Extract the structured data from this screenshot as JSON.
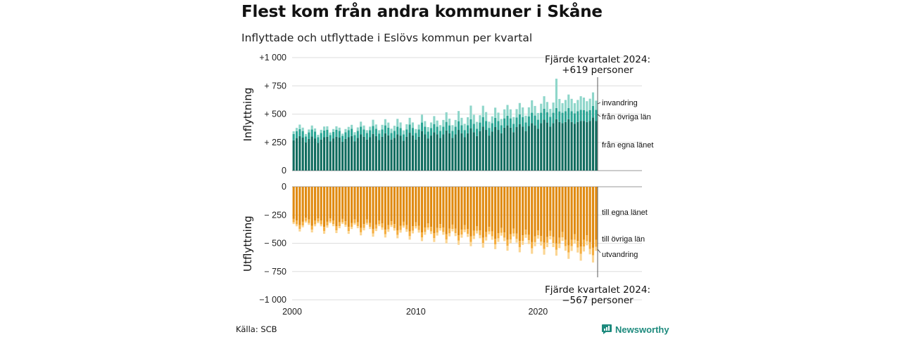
{
  "header": {
    "title": "Flest kom från andra kommuner i Skåne",
    "subtitle": "Inflyttade och utflyttade i Eslövs kommun per kvartal"
  },
  "footer": {
    "source": "Källa: SCB",
    "brand": "Newsworthy"
  },
  "colors": {
    "in_egna": "#0f6b5e",
    "in_ovriga": "#2aa594",
    "in_invandring": "#8ed6ca",
    "ut_egna": "#e08a10",
    "ut_ovriga": "#f5ad3e",
    "ut_utvandring": "#fbd592",
    "grid": "#dddddd",
    "brand": "#1d8a7d"
  },
  "chart_data": [
    {
      "type": "bar",
      "stacked": true,
      "title": "Inflyttning",
      "ylabel": "Inflyttning",
      "ylim": [
        0,
        1000
      ],
      "ytick_labels": [
        "0",
        "+ 250",
        "+ 500",
        "+ 750",
        "+1 000"
      ],
      "x_start": "2000 Q1",
      "x_tick_labels": [
        "2000",
        "2010",
        "2020"
      ],
      "series": [
        {
          "name": "från egna länet",
          "values": [
            268,
            288,
            305,
            292,
            250,
            280,
            302,
            285,
            245,
            275,
            295,
            300,
            260,
            285,
            300,
            292,
            255,
            280,
            295,
            305,
            260,
            290,
            320,
            300,
            275,
            295,
            325,
            305,
            270,
            300,
            330,
            312,
            275,
            290,
            320,
            310,
            265,
            300,
            335,
            312,
            275,
            300,
            350,
            320,
            285,
            310,
            340,
            320,
            290,
            320,
            355,
            330,
            290,
            320,
            360,
            330,
            295,
            330,
            375,
            340,
            305,
            350,
            390,
            360,
            310,
            345,
            385,
            360,
            330,
            380,
            400,
            380,
            340,
            385,
            410,
            390,
            350,
            395,
            420,
            400,
            370,
            420,
            450,
            425,
            390,
            420,
            455,
            430,
            420,
            430,
            455,
            430,
            415,
            430,
            440,
            440,
            430,
            440,
            470,
            440
          ]
        },
        {
          "name": "från övriga län",
          "values": [
            55,
            60,
            62,
            58,
            52,
            58,
            62,
            60,
            50,
            58,
            60,
            62,
            55,
            58,
            62,
            60,
            52,
            60,
            62,
            65,
            55,
            62,
            68,
            64,
            58,
            62,
            70,
            65,
            58,
            65,
            70,
            68,
            58,
            62,
            68,
            66,
            56,
            65,
            72,
            66,
            58,
            65,
            75,
            68,
            60,
            66,
            72,
            68,
            62,
            68,
            76,
            70,
            62,
            68,
            77,
            72,
            64,
            72,
            80,
            74,
            66,
            75,
            84,
            78,
            68,
            75,
            82,
            78,
            72,
            82,
            86,
            82,
            74,
            84,
            88,
            84,
            76,
            85,
            92,
            87,
            80,
            92,
            98,
            92,
            86,
            92,
            98,
            94,
            92,
            95,
            98,
            95,
            92,
            95,
            98,
            96,
            94,
            96,
            102,
            98
          ]
        },
        {
          "name": "invandring",
          "values": [
            25,
            30,
            40,
            30,
            22,
            26,
            35,
            28,
            22,
            28,
            35,
            30,
            22,
            25,
            30,
            28,
            20,
            28,
            30,
            35,
            25,
            30,
            45,
            35,
            25,
            32,
            55,
            38,
            30,
            40,
            55,
            45,
            38,
            45,
            70,
            50,
            35,
            45,
            60,
            48,
            35,
            42,
            70,
            50,
            40,
            50,
            70,
            55,
            50,
            60,
            85,
            60,
            50,
            60,
            90,
            65,
            55,
            70,
            120,
            80,
            60,
            65,
            100,
            80,
            55,
            60,
            90,
            75,
            55,
            80,
            95,
            80,
            60,
            75,
            100,
            85,
            60,
            80,
            110,
            85,
            60,
            80,
            110,
            90,
            70,
            90,
            260,
            110,
            85,
            100,
            120,
            110,
            90,
            100,
            120,
            110,
            90,
            100,
            120,
            81
          ]
        }
      ]
    },
    {
      "type": "bar",
      "stacked": true,
      "title": "Utflyttning",
      "ylabel": "Utflyttning",
      "ylim": [
        -1000,
        0
      ],
      "ytick_labels": [
        "0",
        "− 250",
        "− 500",
        "− 750",
        "−1 000"
      ],
      "x_start": "2000 Q1",
      "x_tick_labels": [
        "2000",
        "2010",
        "2020"
      ],
      "series": [
        {
          "name": "till egna länet",
          "values": [
            -285,
            -300,
            -340,
            -310,
            -275,
            -290,
            -345,
            -300,
            -280,
            -300,
            -355,
            -310,
            -280,
            -300,
            -350,
            -315,
            -285,
            -305,
            -355,
            -320,
            -290,
            -315,
            -365,
            -330,
            -290,
            -320,
            -375,
            -335,
            -300,
            -325,
            -380,
            -340,
            -305,
            -330,
            -385,
            -345,
            -310,
            -340,
            -395,
            -350,
            -315,
            -345,
            -405,
            -360,
            -325,
            -355,
            -410,
            -365,
            -330,
            -360,
            -420,
            -370,
            -335,
            -370,
            -430,
            -380,
            -340,
            -375,
            -440,
            -390,
            -350,
            -385,
            -450,
            -400,
            -355,
            -395,
            -460,
            -410,
            -365,
            -405,
            -470,
            -420,
            -370,
            -415,
            -480,
            -430,
            -380,
            -425,
            -490,
            -440,
            -385,
            -435,
            -495,
            -445,
            -390,
            -445,
            -500,
            -450,
            -400,
            -470,
            -520,
            -470,
            -420,
            -480,
            -530,
            -470,
            -430,
            -490,
            -540,
            -470
          ]
        },
        {
          "name": "till övriga län",
          "values": [
            -30,
            -32,
            -34,
            -32,
            -28,
            -30,
            -35,
            -32,
            -28,
            -32,
            -36,
            -33,
            -28,
            -31,
            -36,
            -33,
            -29,
            -32,
            -37,
            -34,
            -30,
            -33,
            -38,
            -35,
            -31,
            -34,
            -39,
            -36,
            -32,
            -35,
            -40,
            -37,
            -33,
            -36,
            -41,
            -38,
            -34,
            -37,
            -42,
            -39,
            -35,
            -38,
            -44,
            -40,
            -36,
            -39,
            -45,
            -41,
            -37,
            -40,
            -46,
            -42,
            -38,
            -41,
            -47,
            -43,
            -39,
            -42,
            -48,
            -44,
            -40,
            -43,
            -49,
            -45,
            -41,
            -44,
            -50,
            -46,
            -42,
            -45,
            -52,
            -47,
            -43,
            -47,
            -54,
            -49,
            -44,
            -48,
            -55,
            -50,
            -45,
            -50,
            -56,
            -51,
            -46,
            -52,
            -58,
            -53,
            -48,
            -56,
            -62,
            -56,
            -50,
            -58,
            -64,
            -58,
            -52,
            -60,
            -66,
            -62
          ]
        },
        {
          "name": "utvandring",
          "values": [
            -15,
            -18,
            -22,
            -17,
            -14,
            -17,
            -24,
            -18,
            -15,
            -18,
            -25,
            -19,
            -14,
            -18,
            -24,
            -19,
            -15,
            -18,
            -25,
            -20,
            -16,
            -19,
            -27,
            -21,
            -16,
            -20,
            -28,
            -21,
            -17,
            -21,
            -29,
            -22,
            -18,
            -22,
            -30,
            -23,
            -18,
            -22,
            -31,
            -24,
            -19,
            -23,
            -32,
            -25,
            -20,
            -24,
            -34,
            -26,
            -21,
            -25,
            -35,
            -27,
            -22,
            -26,
            -37,
            -28,
            -23,
            -27,
            -38,
            -29,
            -24,
            -28,
            -40,
            -31,
            -25,
            -30,
            -42,
            -32,
            -26,
            -31,
            -44,
            -33,
            -27,
            -32,
            -46,
            -35,
            -28,
            -34,
            -48,
            -36,
            -29,
            -35,
            -50,
            -38,
            -30,
            -37,
            -52,
            -40,
            -32,
            -40,
            -56,
            -42,
            -34,
            -44,
            -60,
            -45,
            -36,
            -48,
            -64,
            -35
          ]
        }
      ]
    }
  ],
  "segment_labels": {
    "in": [
      "invandring",
      "från övriga län",
      "från egna länet"
    ],
    "out": [
      "till egna länet",
      "till övriga län",
      "utvandring"
    ]
  },
  "annotations": {
    "in": {
      "line1": "Fjärde kvartalet 2024:",
      "line2": "+619 personer"
    },
    "out": {
      "line1": "Fjärde kvartalet 2024:",
      "line2": "−567 personer"
    }
  }
}
